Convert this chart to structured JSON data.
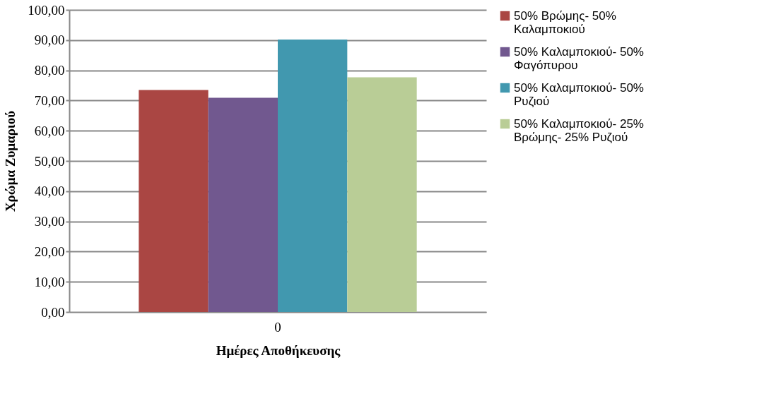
{
  "chart_data": {
    "type": "bar",
    "xlabel": "Ημέρες Αποθήκευσης",
    "ylabel": "Χρώμα Ζυμαριού",
    "categories": [
      "0"
    ],
    "series": [
      {
        "name": "50% Βρώμης- 50% Καλαμποκιού",
        "color": "#aa4643",
        "values": [
          73.5
        ]
      },
      {
        "name": "50% Καλαμποκιού- 50% Φαγόπυρου",
        "color": "#71588f",
        "values": [
          70.9
        ]
      },
      {
        "name": "50% Καλαμποκιού- 50% Ρυζιού",
        "color": "#4198af",
        "values": [
          90.2
        ]
      },
      {
        "name": "50% Καλαμποκιού- 25% Βρώμης- 25% Ρυζιού",
        "color": "#b9cd96",
        "values": [
          77.7
        ]
      }
    ],
    "ylim": [
      0,
      100
    ],
    "yticks": [
      {
        "value": 0,
        "label": "0,00"
      },
      {
        "value": 10,
        "label": "10,00"
      },
      {
        "value": 20,
        "label": "20,00"
      },
      {
        "value": 30,
        "label": "30,00"
      },
      {
        "value": 40,
        "label": "40,00"
      },
      {
        "value": 50,
        "label": "50,00"
      },
      {
        "value": 60,
        "label": "60,00"
      },
      {
        "value": 70,
        "label": "70,00"
      },
      {
        "value": 80,
        "label": "80,00"
      },
      {
        "value": 90,
        "label": "90,00"
      },
      {
        "value": 100,
        "label": "100,00"
      }
    ],
    "grid": "y",
    "legend": "right"
  }
}
